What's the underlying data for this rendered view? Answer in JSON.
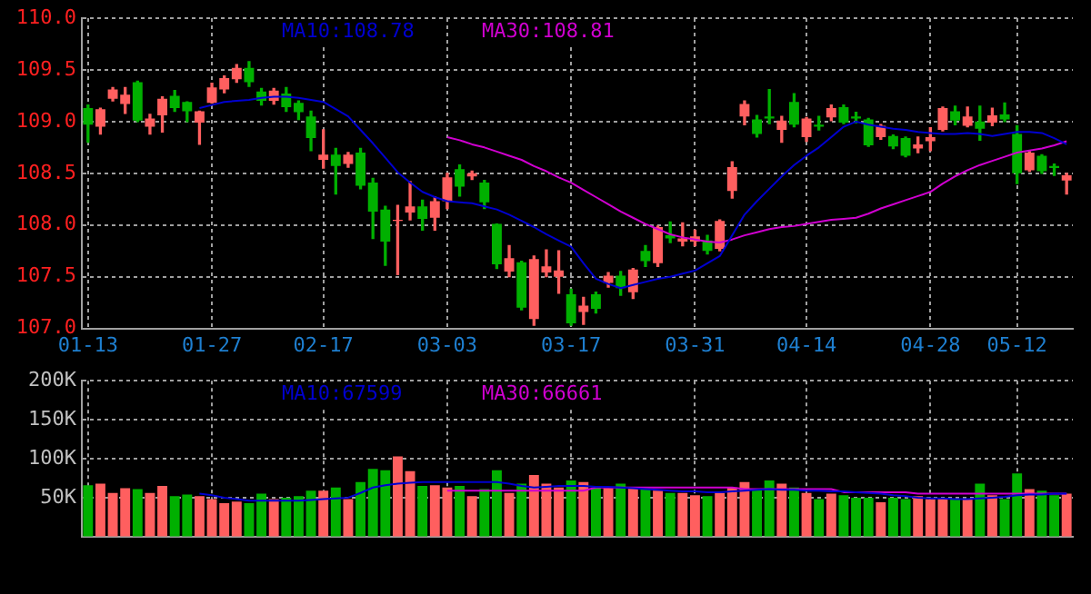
{
  "chart_data": [
    {
      "type": "candlestick",
      "categories": [
        "01-13",
        null,
        null,
        null,
        null,
        null,
        null,
        null,
        null,
        null,
        "01-27",
        null,
        null,
        null,
        null,
        null,
        null,
        null,
        null,
        "02-17",
        null,
        null,
        null,
        null,
        null,
        null,
        null,
        null,
        null,
        "03-03",
        null,
        null,
        null,
        null,
        null,
        null,
        null,
        null,
        null,
        "03-17",
        null,
        null,
        null,
        null,
        null,
        null,
        null,
        null,
        null,
        "03-31",
        null,
        null,
        null,
        null,
        null,
        null,
        null,
        null,
        "04-14",
        null,
        null,
        null,
        null,
        null,
        null,
        null,
        null,
        null,
        "04-28",
        null,
        null,
        null,
        null,
        null,
        null,
        "05-12",
        null,
        null,
        null,
        null
      ],
      "ohlc": [
        [
          109.13,
          109.16,
          108.8,
          108.97
        ],
        [
          108.95,
          109.13,
          108.88,
          109.12
        ],
        [
          109.22,
          109.33,
          109.2,
          109.31
        ],
        [
          109.17,
          109.33,
          109.08,
          109.26
        ],
        [
          109.38,
          109.39,
          109.0,
          109.01
        ],
        [
          108.95,
          109.07,
          108.88,
          109.03
        ],
        [
          109.06,
          109.24,
          108.9,
          109.22
        ],
        [
          109.25,
          109.3,
          109.1,
          109.13
        ],
        [
          109.19,
          109.19,
          109.0,
          109.1
        ],
        [
          108.99,
          109.1,
          108.78,
          109.1
        ],
        [
          109.18,
          109.37,
          109.18,
          109.33
        ],
        [
          109.31,
          109.44,
          109.28,
          109.42
        ],
        [
          109.41,
          109.55,
          109.38,
          109.52
        ],
        [
          109.52,
          109.58,
          109.34,
          109.38
        ],
        [
          109.29,
          109.32,
          109.16,
          109.2
        ],
        [
          109.2,
          109.32,
          109.17,
          109.3
        ],
        [
          109.27,
          109.33,
          109.1,
          109.14
        ],
        [
          109.18,
          109.2,
          109.02,
          109.09
        ],
        [
          109.05,
          109.1,
          108.72,
          108.84
        ],
        [
          108.63,
          108.92,
          108.55,
          108.68
        ],
        [
          108.68,
          108.74,
          108.3,
          108.57
        ],
        [
          108.59,
          108.7,
          108.56,
          108.68
        ],
        [
          108.7,
          108.74,
          108.35,
          108.38
        ],
        [
          108.41,
          108.45,
          107.87,
          108.13
        ],
        [
          108.15,
          108.18,
          107.61,
          107.84
        ],
        [
          108.04,
          108.19,
          107.52,
          108.05
        ],
        [
          108.12,
          108.42,
          108.05,
          108.18
        ],
        [
          108.18,
          108.24,
          107.95,
          108.06
        ],
        [
          108.07,
          108.27,
          107.95,
          108.23
        ],
        [
          108.23,
          108.5,
          108.16,
          108.46
        ],
        [
          108.54,
          108.58,
          108.28,
          108.37
        ],
        [
          108.47,
          108.52,
          108.44,
          108.5
        ],
        [
          108.41,
          108.43,
          108.16,
          108.22
        ],
        [
          108.01,
          108.01,
          107.58,
          107.62
        ],
        [
          107.55,
          107.8,
          107.5,
          107.68
        ],
        [
          107.64,
          107.65,
          107.18,
          107.2
        ],
        [
          107.09,
          107.7,
          107.03,
          107.67
        ],
        [
          107.54,
          107.76,
          107.5,
          107.6
        ],
        [
          107.5,
          107.75,
          107.34,
          107.56
        ],
        [
          107.33,
          107.38,
          107.03,
          107.05
        ],
        [
          107.16,
          107.3,
          107.04,
          107.22
        ],
        [
          107.33,
          107.35,
          107.15,
          107.19
        ],
        [
          107.44,
          107.54,
          107.4,
          107.51
        ],
        [
          107.51,
          107.55,
          107.32,
          107.39
        ],
        [
          107.35,
          107.58,
          107.29,
          107.57
        ],
        [
          107.75,
          107.8,
          107.6,
          107.65
        ],
        [
          107.63,
          107.99,
          107.6,
          107.98
        ],
        [
          107.9,
          108.03,
          107.83,
          107.87
        ],
        [
          107.84,
          108.02,
          107.8,
          107.87
        ],
        [
          107.84,
          107.95,
          107.8,
          107.89
        ],
        [
          107.85,
          107.9,
          107.72,
          107.75
        ],
        [
          107.77,
          108.05,
          107.75,
          108.04
        ],
        [
          108.33,
          108.61,
          108.26,
          108.56
        ],
        [
          109.05,
          109.2,
          108.97,
          109.17
        ],
        [
          109.02,
          109.06,
          108.85,
          108.88
        ],
        [
          109.05,
          109.31,
          108.98,
          109.03
        ],
        [
          108.92,
          109.05,
          108.8,
          109.01
        ],
        [
          109.19,
          109.27,
          108.95,
          108.97
        ],
        [
          108.85,
          109.04,
          108.81,
          109.03
        ],
        [
          108.97,
          109.05,
          108.92,
          108.95
        ],
        [
          109.04,
          109.16,
          109.01,
          109.13
        ],
        [
          109.14,
          109.16,
          108.98,
          108.99
        ],
        [
          109.05,
          109.09,
          108.99,
          109.03
        ],
        [
          109.02,
          109.03,
          108.76,
          108.77
        ],
        [
          108.85,
          108.97,
          108.83,
          108.96
        ],
        [
          108.86,
          108.87,
          108.74,
          108.76
        ],
        [
          108.84,
          108.85,
          108.66,
          108.67
        ],
        [
          108.74,
          108.85,
          108.7,
          108.78
        ],
        [
          108.81,
          108.94,
          108.72,
          108.85
        ],
        [
          108.92,
          109.14,
          108.91,
          109.13
        ],
        [
          109.1,
          109.15,
          108.97,
          109.01
        ],
        [
          108.96,
          109.14,
          108.95,
          109.05
        ],
        [
          109.0,
          109.15,
          108.82,
          108.93
        ],
        [
          108.99,
          109.13,
          108.96,
          109.06
        ],
        [
          109.07,
          109.18,
          109.0,
          109.02
        ],
        [
          108.88,
          108.96,
          108.4,
          108.5
        ],
        [
          108.53,
          108.71,
          108.52,
          108.7
        ],
        [
          108.67,
          108.68,
          108.5,
          108.52
        ],
        [
          108.57,
          108.59,
          108.48,
          108.55
        ],
        [
          108.43,
          108.5,
          108.3,
          108.48
        ]
      ],
      "colors": [
        "#00b000",
        "#ff5f5f",
        "#ff5f5f",
        "#ff5f5f",
        "#00b000",
        "#ff5f5f",
        "#ff5f5f",
        "#00b000",
        "#00b000",
        "#ff5f5f",
        "#ff5f5f",
        "#ff5f5f",
        "#ff5f5f",
        "#00b000",
        "#00b000",
        "#ff5f5f",
        "#00b000",
        "#00b000",
        "#00b000",
        "#ff5f5f",
        "#00b000",
        "#ff5f5f",
        "#00b000",
        "#00b000",
        "#00b000",
        "#ff5f5f",
        "#ff5f5f",
        "#00b000",
        "#ff5f5f",
        "#ff5f5f",
        "#00b000",
        "#ff5f5f",
        "#00b000",
        "#00b000",
        "#ff5f5f",
        "#00b000",
        "#ff5f5f",
        "#ff5f5f",
        "#ff5f5f",
        "#00b000",
        "#ff5f5f",
        "#00b000",
        "#ff5f5f",
        "#00b000",
        "#ff5f5f",
        "#00b000",
        "#ff5f5f",
        "#00b000",
        "#ff5f5f",
        "#ff5f5f",
        "#00b000",
        "#ff5f5f",
        "#ff5f5f",
        "#ff5f5f",
        "#00b000",
        "#00b000",
        "#ff5f5f",
        "#00b000",
        "#ff5f5f",
        "#00b000",
        "#ff5f5f",
        "#00b000",
        "#00b000",
        "#00b000",
        "#ff5f5f",
        "#00b000",
        "#00b000",
        "#ff5f5f",
        "#ff5f5f",
        "#ff5f5f",
        "#00b000",
        "#ff5f5f",
        "#00b000",
        "#ff5f5f",
        "#00b000",
        "#00b000",
        "#ff5f5f",
        "#00b000",
        "#00b000",
        "#ff5f5f"
      ],
      "series": [
        {
          "name": "MA10:108.78",
          "type": "line",
          "color": "#0000d0",
          "values": [
            null,
            null,
            null,
            null,
            null,
            null,
            null,
            null,
            null,
            109.13,
            109.16,
            109.19,
            109.2,
            109.21,
            109.23,
            109.24,
            109.24,
            109.23,
            109.21,
            109.19,
            109.12,
            109.05,
            108.92,
            108.79,
            108.65,
            108.51,
            108.41,
            108.32,
            108.27,
            108.23,
            108.22,
            108.21,
            108.18,
            108.15,
            108.1,
            108.04,
            107.98,
            107.91,
            107.85,
            107.79,
            107.63,
            107.48,
            107.43,
            107.39,
            107.42,
            107.45,
            107.48,
            107.5,
            107.53,
            107.56,
            107.63,
            107.7,
            107.9,
            108.1,
            108.23,
            108.35,
            108.47,
            108.58,
            108.67,
            108.75,
            108.85,
            108.95,
            109.0,
            108.97,
            108.95,
            108.93,
            108.92,
            108.9,
            108.89,
            108.88,
            108.88,
            108.89,
            108.88,
            108.86,
            108.88,
            108.9,
            108.9,
            108.89,
            108.84,
            108.78
          ]
        },
        {
          "name": "MA30:108.81",
          "type": "line",
          "color": "#d000d0",
          "values": [
            null,
            null,
            null,
            null,
            null,
            null,
            null,
            null,
            null,
            null,
            null,
            null,
            null,
            null,
            null,
            null,
            null,
            null,
            null,
            null,
            null,
            null,
            null,
            null,
            null,
            null,
            null,
            null,
            null,
            108.85,
            108.82,
            108.78,
            108.75,
            108.71,
            108.67,
            108.63,
            108.57,
            108.52,
            108.46,
            108.41,
            108.34,
            108.27,
            108.2,
            108.13,
            108.07,
            108.01,
            107.96,
            107.91,
            107.88,
            107.86,
            107.84,
            107.83,
            107.86,
            107.9,
            107.93,
            107.96,
            107.98,
            107.99,
            108.01,
            108.03,
            108.05,
            108.06,
            108.07,
            108.11,
            108.16,
            108.2,
            108.24,
            108.28,
            108.32,
            108.4,
            108.47,
            108.53,
            108.58,
            108.62,
            108.66,
            108.7,
            108.72,
            108.74,
            108.77,
            108.81
          ]
        }
      ],
      "ylim": [
        107,
        110
      ],
      "yticks": [
        {
          "value": 107,
          "label": "107.0"
        },
        {
          "value": 107.5,
          "label": "107.5"
        },
        {
          "value": 108,
          "label": "108.0"
        },
        {
          "value": 108.5,
          "label": "108.5"
        },
        {
          "value": 109,
          "label": "109.0"
        },
        {
          "value": 109.5,
          "label": "109.5"
        },
        {
          "value": 110,
          "label": "110.0"
        }
      ],
      "grid": true,
      "legend": "top",
      "marker": "none"
    },
    {
      "type": "bar",
      "categories": [
        null,
        null,
        null,
        null,
        null,
        null,
        null,
        null,
        null,
        null,
        null,
        null,
        null,
        null,
        null,
        null,
        null,
        null,
        null,
        null,
        null,
        null,
        null,
        null,
        null,
        null,
        null,
        null,
        null,
        null,
        null,
        null,
        null,
        null,
        null,
        null,
        null,
        null,
        null,
        null,
        null,
        null,
        null,
        null,
        null,
        null,
        null,
        null,
        null,
        null,
        null,
        null,
        null,
        null,
        null,
        null,
        null,
        null,
        null,
        null,
        null,
        null,
        null,
        null,
        null,
        null,
        null,
        null,
        null,
        null,
        null,
        null,
        null,
        null,
        null,
        null,
        null,
        null,
        null,
        null
      ],
      "tick_labels": "y",
      "series": [
        {
          "type": "bar",
          "values": [
            66000,
            68000,
            56000,
            62000,
            61000,
            56000,
            65000,
            52000,
            54000,
            52000,
            48000,
            43000,
            45000,
            43000,
            55000,
            48000,
            50000,
            52000,
            59000,
            59000,
            63000,
            48000,
            70000,
            87000,
            85000,
            103000,
            84000,
            65000,
            66000,
            63000,
            65000,
            52000,
            61000,
            85000,
            56000,
            68000,
            79000,
            68000,
            63000,
            72000,
            70000,
            63000,
            62000,
            68000,
            62000,
            62000,
            59000,
            56000,
            56000,
            53000,
            52000,
            56000,
            63000,
            70000,
            61000,
            72000,
            68000,
            63000,
            56000,
            48000,
            55000,
            53000,
            50000,
            50000,
            44000,
            50000,
            48000,
            52000,
            48000,
            50000,
            48000,
            48000,
            68000,
            53000,
            48000,
            81000,
            61000,
            59000,
            53000,
            55000
          ],
          "colors": [
            "#00b000",
            "#ff5f5f",
            "#ff5f5f",
            "#ff5f5f",
            "#00b000",
            "#ff5f5f",
            "#ff5f5f",
            "#00b000",
            "#00b000",
            "#ff5f5f",
            "#ff5f5f",
            "#ff5f5f",
            "#ff5f5f",
            "#00b000",
            "#00b000",
            "#ff5f5f",
            "#00b000",
            "#00b000",
            "#00b000",
            "#ff5f5f",
            "#00b000",
            "#ff5f5f",
            "#00b000",
            "#00b000",
            "#00b000",
            "#ff5f5f",
            "#ff5f5f",
            "#00b000",
            "#ff5f5f",
            "#ff5f5f",
            "#00b000",
            "#ff5f5f",
            "#00b000",
            "#00b000",
            "#ff5f5f",
            "#00b000",
            "#ff5f5f",
            "#ff5f5f",
            "#ff5f5f",
            "#00b000",
            "#ff5f5f",
            "#00b000",
            "#ff5f5f",
            "#00b000",
            "#ff5f5f",
            "#00b000",
            "#ff5f5f",
            "#00b000",
            "#ff5f5f",
            "#ff5f5f",
            "#00b000",
            "#ff5f5f",
            "#ff5f5f",
            "#ff5f5f",
            "#00b000",
            "#00b000",
            "#ff5f5f",
            "#00b000",
            "#ff5f5f",
            "#00b000",
            "#ff5f5f",
            "#00b000",
            "#00b000",
            "#00b000",
            "#ff5f5f",
            "#00b000",
            "#00b000",
            "#ff5f5f",
            "#ff5f5f",
            "#ff5f5f",
            "#00b000",
            "#ff5f5f",
            "#00b000",
            "#ff5f5f",
            "#00b000",
            "#00b000",
            "#ff5f5f",
            "#00b000",
            "#00b000",
            "#ff5f5f"
          ]
        },
        {
          "name": "MA10:67599",
          "type": "line",
          "color": "#0000d0",
          "values": [
            null,
            null,
            null,
            null,
            null,
            null,
            null,
            null,
            null,
            55000,
            53000,
            50000,
            48000,
            46000,
            46000,
            46000,
            46000,
            46000,
            47000,
            48000,
            49000,
            50000,
            56000,
            63000,
            66000,
            68000,
            69000,
            70000,
            70000,
            70000,
            70000,
            70000,
            70000,
            70000,
            68000,
            65000,
            63000,
            64000,
            65000,
            65000,
            65000,
            64000,
            64000,
            63000,
            62000,
            61000,
            60000,
            59000,
            58000,
            58000,
            57000,
            57000,
            58000,
            59000,
            60000,
            61000,
            60000,
            60000,
            59000,
            59000,
            58000,
            58000,
            57000,
            56000,
            55000,
            53000,
            52000,
            50000,
            49000,
            49000,
            48000,
            48000,
            49000,
            50000,
            51000,
            53000,
            54000,
            54000,
            55000,
            55000
          ]
        },
        {
          "name": "MA30:66661",
          "type": "line",
          "color": "#d000d0",
          "values": [
            null,
            null,
            null,
            null,
            null,
            null,
            null,
            null,
            null,
            null,
            null,
            null,
            null,
            null,
            null,
            null,
            null,
            null,
            null,
            null,
            null,
            null,
            null,
            null,
            null,
            null,
            null,
            null,
            null,
            59000,
            59000,
            59000,
            59000,
            59000,
            59000,
            59000,
            59000,
            59000,
            59000,
            59000,
            59000,
            63000,
            63000,
            63000,
            63000,
            63000,
            63000,
            63000,
            63000,
            63000,
            63000,
            63000,
            63000,
            61000,
            61000,
            61000,
            61000,
            61000,
            61000,
            61000,
            61000,
            57000,
            57000,
            57000,
            57000,
            57000,
            57000,
            55000,
            55000,
            55000,
            55000,
            55000,
            55000,
            55000,
            55000,
            55000,
            55000,
            55000,
            55000,
            55000
          ]
        }
      ],
      "ylim": [
        0,
        200000
      ],
      "yticks": [
        {
          "value": 50000,
          "label": "50K"
        },
        {
          "value": 100000,
          "label": "100K"
        },
        {
          "value": 150000,
          "label": "150K"
        },
        {
          "value": 200000,
          "label": "200K"
        }
      ],
      "grid": true,
      "legend": "top",
      "marker": "none"
    }
  ]
}
